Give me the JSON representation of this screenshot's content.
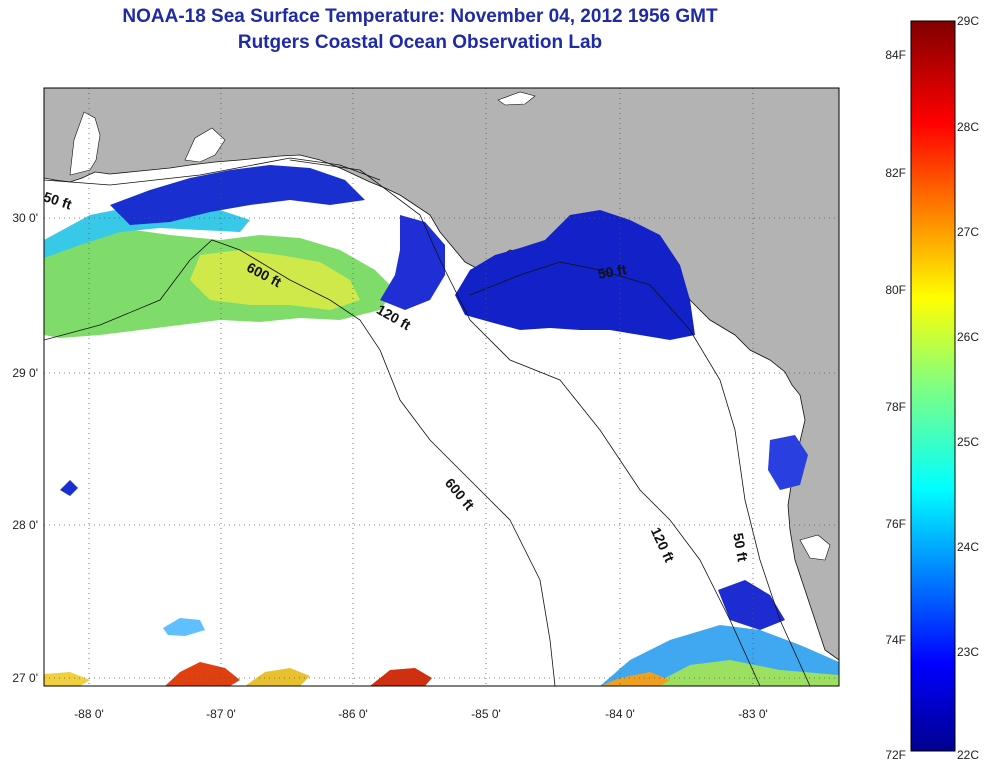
{
  "header": {
    "title": "NOAA-18 Sea Surface Temperature:  November 04, 2012 1956 GMT",
    "subtitle": "Rutgers Coastal Ocean Observation Lab"
  },
  "map": {
    "lat_labels": [
      "30 0'",
      "29 0'",
      "28 0'",
      "27 0'"
    ],
    "lon_labels": [
      "-88 0'",
      "-87 0'",
      "-86 0'",
      "-85 0'",
      "-84 0'",
      "-83 0'"
    ],
    "lat_ticks": [
      30,
      29,
      28,
      27
    ],
    "lon_ticks": [
      -88,
      -87,
      -86,
      -85,
      -84,
      -83
    ],
    "contour_labels": [
      "50 ft",
      "600 ft",
      "120 ft",
      "50 ft",
      "600 ft",
      "120 ft",
      "50 ft"
    ],
    "land_color": "#b3b3b3",
    "no_data_color": "#ffffff"
  },
  "colorbar": {
    "fahrenheit": [
      "84F",
      "82F",
      "80F",
      "78F",
      "76F",
      "74F",
      "72F"
    ],
    "celsius": [
      "29C",
      "28C",
      "27C",
      "26C",
      "25C",
      "24C",
      "23C",
      "22C"
    ],
    "colormap": "jet"
  }
}
